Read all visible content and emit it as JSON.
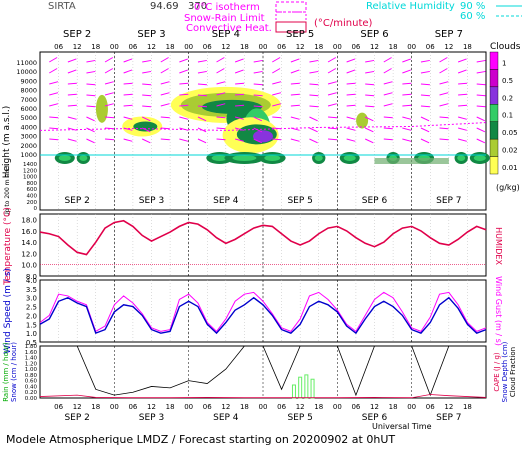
{
  "header": {
    "site": "SIRTA",
    "coords": "94.69",
    "coords_tail": "370",
    "legend_isotherm": "0°C isotherm",
    "legend_snowrain": "Snow-Rain Limit",
    "legend_convective": "Convective Heat.",
    "legend_convective_unit": "(°C/minute)",
    "legend_rh": "Relative Humidity",
    "rh_90": "90 %",
    "rh_60": "60 %"
  },
  "footer": {
    "caption": "Modele Atmospherique LMDZ / Forecast starting on 20200902 at 0hUT",
    "xlabel": "Universal Time"
  },
  "colors": {
    "magenta": "#ff00ff",
    "red": "#e0004a",
    "blue": "#0000cc",
    "cyan": "#00d8d8",
    "green": "#66ee66",
    "grid": "#bbbbbb"
  },
  "axes": {
    "day_labels": [
      "SEP 2",
      "SEP 3",
      "SEP 4",
      "SEP 5",
      "SEP 6",
      "SEP 7"
    ],
    "hour_labels": [
      "06",
      "12",
      "18",
      "00",
      "06",
      "12",
      "18",
      "00",
      "06",
      "12",
      "18",
      "00",
      "06",
      "12",
      "18",
      "00",
      "06",
      "12",
      "18",
      "00",
      "06",
      "12",
      "18"
    ],
    "clouds_yticks_upper": [
      "11000",
      "10000",
      "9000",
      "8000",
      "7000",
      "6000",
      "5000",
      "4000",
      "3000",
      "2000",
      "1000"
    ],
    "clouds_yticks_lower": [
      "1400",
      "1200",
      "1000",
      "800",
      "600",
      "400",
      "200",
      "0"
    ],
    "clouds_ylabel": "Height (m a.s.l.)",
    "clouds_ylabel_lower": "Up to 200 m a.s.l.",
    "temp_yticks": [
      "18.0",
      "16.0",
      "14.0",
      "12.0",
      "10.0",
      "8.0"
    ],
    "temp_ylabel": "Temperature (°C)",
    "temp_ylabel_right": "HUMIDEX",
    "wind_yticks": [
      "4.0",
      "3.5",
      "3.0",
      "2.5",
      "2.0",
      "1.5",
      "1.0",
      "0.5"
    ],
    "wind_ylabel": "Wind Speed (m / s)",
    "wind_ylabel_right": "Wind Gust (m / s)",
    "rain_yticks": [
      "1.80",
      "1.60",
      "1.40",
      "1.20",
      "1.00",
      "0.80",
      "0.60",
      "0.40",
      "0.20",
      "0.00"
    ],
    "rain_ylabel": "Rain (mm / hour)",
    "rain_ylabel2": "Snow (cm / hour)",
    "rain_ylabel_right1": "CAPE (J / g)",
    "rain_ylabel_right2": "Snow Depth (cm)",
    "rain_ylabel_right3": "Cloud Fraction"
  },
  "colorbar": {
    "title": "Clouds",
    "labels": [
      "1",
      "0.5",
      "0.2",
      "0.1",
      "0.05",
      "0.02",
      "0.01"
    ],
    "unit": "(g/kg)",
    "colors": [
      "#ff00ff",
      "#cc00cc",
      "#8833dd",
      "#33cc66",
      "#118844",
      "#aacc33",
      "#ffff55"
    ]
  },
  "chart_data": [
    {
      "type": "line",
      "name": "temperature",
      "ylabel": "Temperature (°C)",
      "ylim": [
        8,
        19
      ],
      "x_hours": [
        0,
        3,
        6,
        9,
        12,
        15,
        18,
        21,
        24,
        27,
        30,
        33,
        36,
        39,
        42,
        45,
        48,
        51,
        54,
        57,
        60,
        63,
        66,
        69,
        72,
        75,
        78,
        81,
        84,
        87,
        90,
        93,
        96,
        99,
        102,
        105,
        108,
        111,
        114,
        117,
        120,
        123,
        126,
        129,
        132,
        135,
        138,
        141,
        144
      ],
      "values": [
        15.8,
        15.5,
        15.0,
        13.5,
        12.2,
        11.8,
        14.0,
        16.5,
        17.5,
        17.8,
        16.8,
        15.2,
        14.2,
        15.0,
        15.8,
        16.8,
        17.5,
        17.2,
        16.2,
        14.8,
        13.8,
        14.5,
        15.5,
        16.5,
        17.0,
        16.8,
        15.5,
        14.2,
        13.5,
        14.2,
        15.5,
        16.5,
        16.8,
        16.0,
        14.8,
        13.8,
        13.2,
        14.0,
        15.5,
        16.5,
        16.8,
        16.0,
        14.8,
        13.8,
        13.5,
        14.5,
        15.8,
        16.8,
        16.2
      ]
    },
    {
      "type": "line",
      "name": "wind",
      "ylabel": "Wind Speed (m / s)",
      "ylim": [
        0.5,
        4.0
      ],
      "x_hours": [
        0,
        3,
        6,
        9,
        12,
        15,
        18,
        21,
        24,
        27,
        30,
        33,
        36,
        39,
        42,
        45,
        48,
        51,
        54,
        57,
        60,
        63,
        66,
        69,
        72,
        75,
        78,
        81,
        84,
        87,
        90,
        93,
        96,
        99,
        102,
        105,
        108,
        111,
        114,
        117,
        120,
        123,
        126,
        129,
        132,
        135,
        138,
        141,
        144
      ],
      "speed": [
        1.5,
        1.8,
        2.8,
        3.0,
        2.7,
        2.5,
        1.0,
        1.2,
        2.2,
        2.6,
        2.5,
        2.0,
        1.2,
        1.0,
        1.1,
        2.5,
        2.8,
        2.5,
        1.5,
        1.0,
        1.6,
        2.3,
        2.6,
        3.0,
        2.6,
        2.0,
        1.2,
        1.0,
        1.5,
        2.5,
        2.8,
        2.6,
        2.2,
        1.4,
        1.0,
        1.8,
        2.5,
        2.8,
        2.5,
        2.0,
        1.2,
        1.0,
        1.6,
        2.6,
        3.0,
        2.4,
        1.5,
        1.0,
        1.2
      ],
      "gust": [
        1.6,
        2.0,
        3.2,
        3.1,
        2.8,
        2.6,
        1.1,
        1.4,
        2.6,
        3.1,
        2.7,
        2.1,
        1.3,
        1.1,
        1.2,
        2.9,
        3.2,
        2.7,
        1.6,
        1.1,
        1.8,
        2.8,
        3.2,
        3.3,
        2.8,
        2.1,
        1.3,
        1.1,
        1.8,
        3.1,
        3.3,
        2.9,
        2.3,
        1.5,
        1.1,
        2.0,
        2.9,
        3.3,
        3.0,
        2.2,
        1.3,
        1.1,
        1.9,
        3.2,
        3.3,
        2.6,
        1.6,
        1.1,
        1.3
      ]
    },
    {
      "type": "line",
      "name": "precipitation",
      "ylabel": "Rain (mm / hour)",
      "ylim": [
        0,
        1.8
      ],
      "rain_bars_hours": [
        82,
        84,
        86,
        88
      ],
      "rain_bars_values": [
        0.45,
        0.72,
        0.8,
        0.65
      ],
      "cloud_fraction_hours": [
        0,
        6,
        12,
        18,
        24,
        30,
        36,
        42,
        48,
        54,
        60,
        66,
        72,
        78,
        84,
        90,
        96,
        102,
        108,
        114,
        120,
        126,
        132,
        138,
        144
      ],
      "cloud_fraction": [
        1.8,
        1.8,
        1.8,
        0.3,
        0.1,
        0.2,
        0.4,
        0.35,
        0.6,
        0.5,
        1.0,
        1.8,
        1.8,
        0.3,
        1.8,
        1.8,
        1.8,
        0.1,
        1.8,
        1.8,
        1.8,
        0.1,
        1.8,
        1.8,
        1.8
      ],
      "cape_hours": [
        0,
        12,
        18,
        30,
        42,
        54,
        66,
        78,
        90,
        96,
        108,
        120,
        126,
        132,
        144
      ],
      "cape": [
        0.05,
        0.1,
        0.02,
        0.01,
        0.01,
        0.02,
        0.01,
        0.01,
        0.01,
        0.01,
        0.02,
        0.01,
        0.12,
        0.08,
        0.02
      ]
    }
  ]
}
